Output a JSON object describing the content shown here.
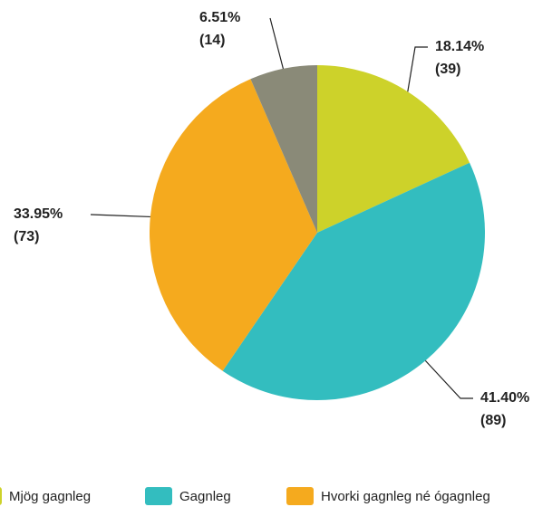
{
  "chart_data": {
    "type": "pie",
    "categories": [
      "Mjög gagnleg",
      "Gagnleg",
      "Hvorki gagnleg né ógagnleg",
      null
    ],
    "values": [
      18.14,
      41.4,
      33.95,
      6.51
    ],
    "value_labels": [
      "18.14%",
      "41.40%",
      "33.95%",
      "6.51%"
    ],
    "counts": [
      39,
      89,
      73,
      14
    ],
    "count_labels": [
      "(39)",
      "(89)",
      "(73)",
      "(14)"
    ],
    "colors": [
      "#cdd22a",
      "#33bdbf",
      "#f5aa1e",
      "#8a8a78"
    ]
  }
}
